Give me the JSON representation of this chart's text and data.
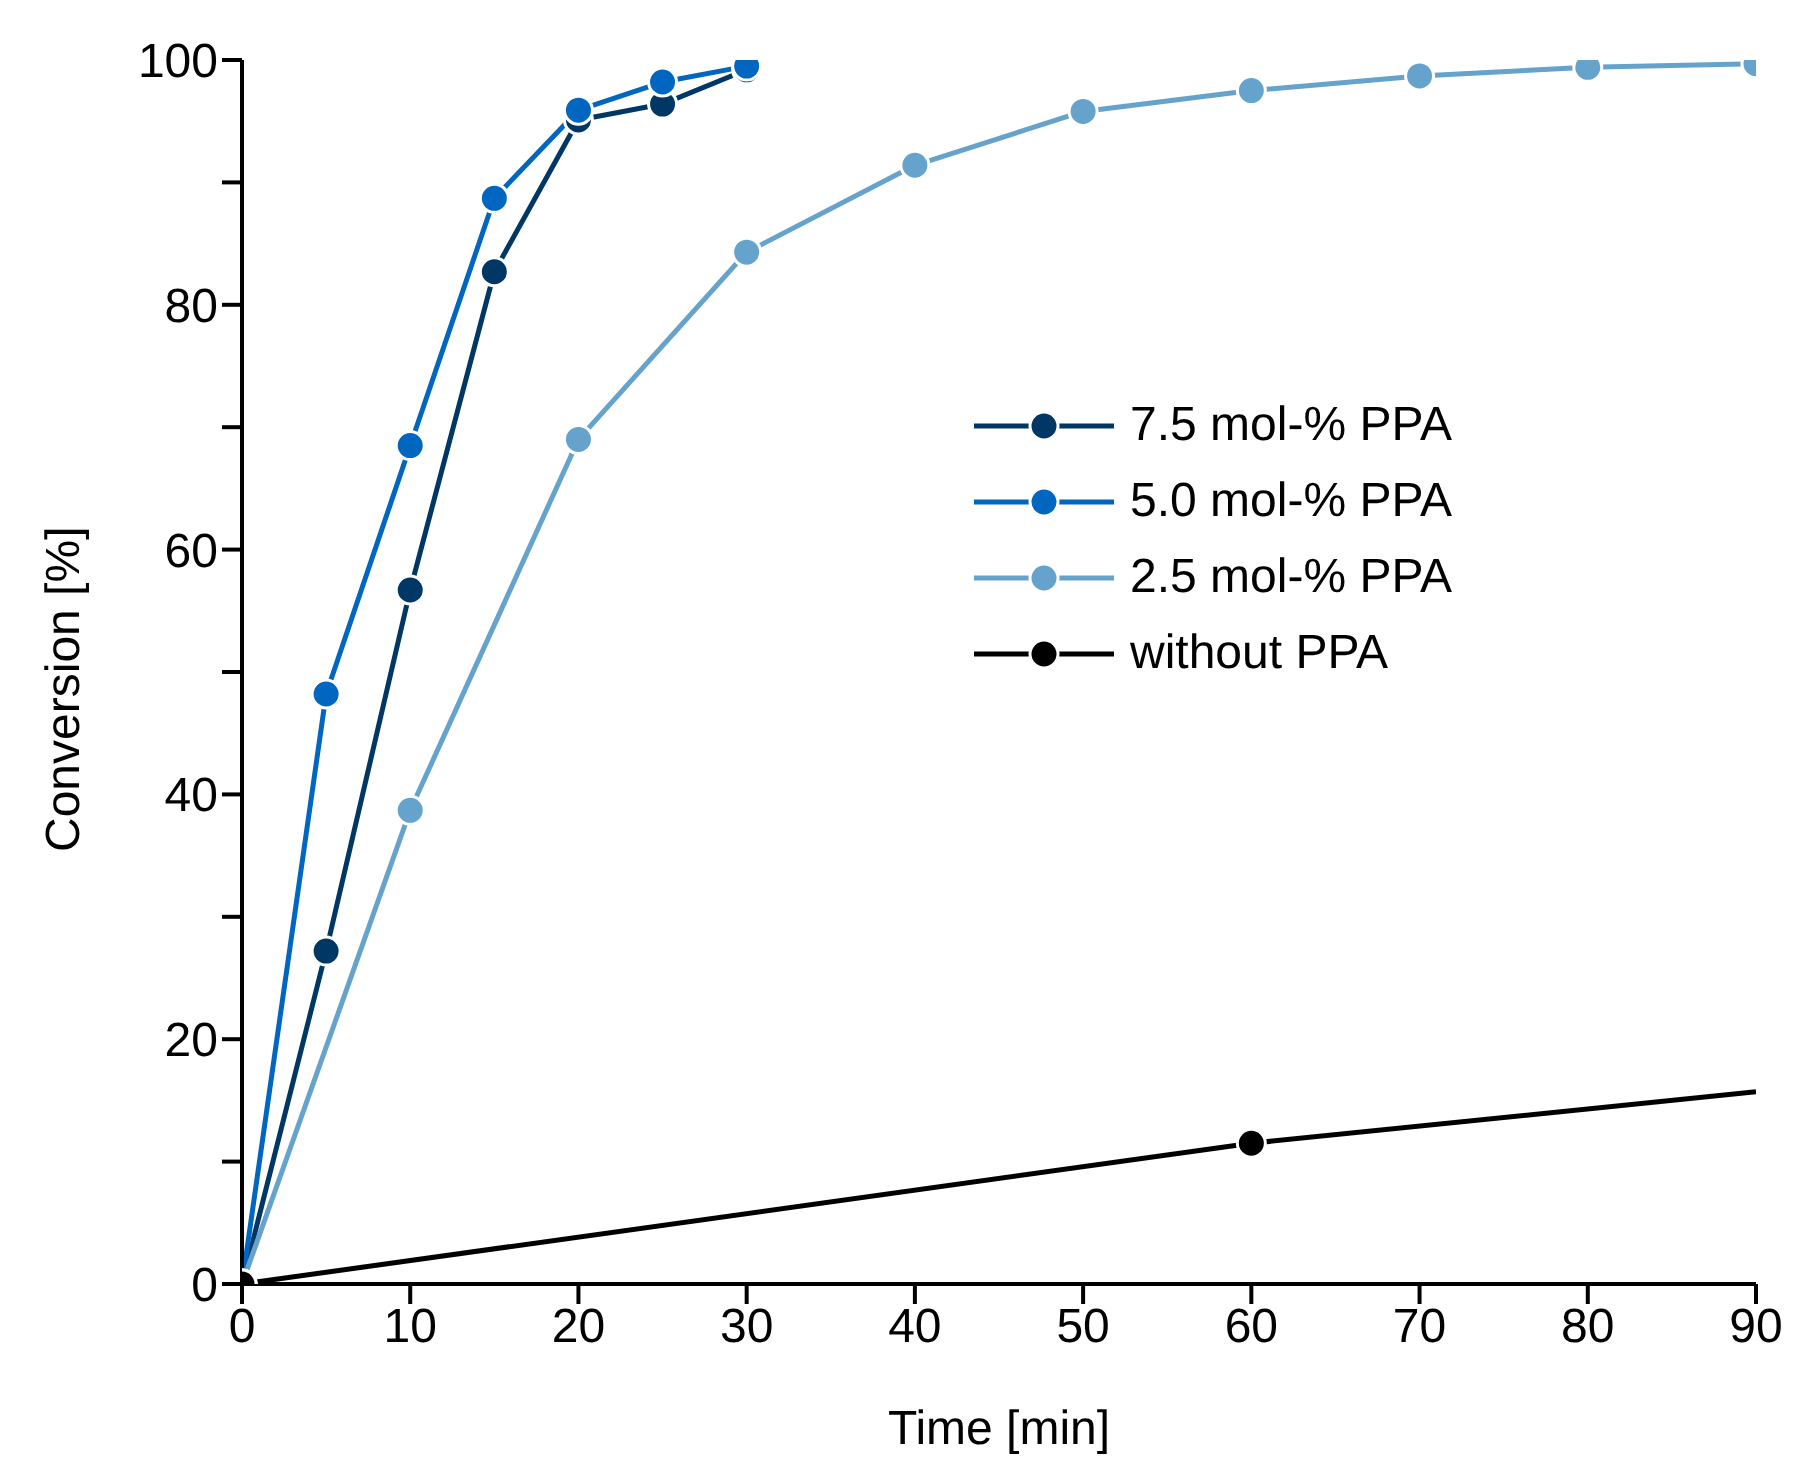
{
  "chart_data": {
    "type": "line",
    "xlabel": "Time [min]",
    "ylabel": "Conversion [%]",
    "xlim": [
      0,
      90
    ],
    "xticks": [
      0,
      10,
      20,
      30,
      40,
      50,
      60,
      70,
      80,
      90
    ],
    "ylim": [
      0,
      100
    ],
    "yticks": [
      0,
      {
        "value": 10,
        "label": null
      },
      20,
      {
        "value": 30,
        "label": null
      },
      40,
      {
        "value": 50,
        "label": null
      },
      60,
      {
        "value": 70,
        "label": null
      },
      80,
      {
        "value": 90,
        "label": null
      },
      100
    ],
    "legend": "right",
    "marker": "circle",
    "line_style": "solid",
    "series": [
      {
        "name": "7.5 mol-% PPA",
        "color": "#003764",
        "x": [
          0,
          5,
          10,
          15,
          20,
          25,
          30
        ],
        "values": [
          0,
          27.2,
          56.7,
          82.7,
          95.1,
          96.4,
          99.2
        ]
      },
      {
        "name": "5.0 mol-% PPA",
        "color": "#0066c0",
        "x": [
          0,
          5,
          10,
          15,
          20,
          25,
          30
        ],
        "values": [
          0,
          48.2,
          68.5,
          88.7,
          95.9,
          98.2,
          99.5
        ]
      },
      {
        "name": "2.5 mol-% PPA",
        "color": "#66a3cc",
        "x": [
          0,
          10,
          20,
          30,
          40,
          50,
          60,
          70,
          80,
          90
        ],
        "values": [
          0,
          38.7,
          69.0,
          84.3,
          91.4,
          95.8,
          97.5,
          98.7,
          99.4,
          99.7
        ]
      },
      {
        "name": "without PPA",
        "color": "#000000",
        "x": [
          0,
          60
        ],
        "values": [
          0,
          11.5
        ]
      },
      {
        "color": "#000000",
        "marker": "none",
        "x": [
          60,
          90
        ],
        "values": [
          11.5,
          15.7
        ]
      }
    ]
  }
}
